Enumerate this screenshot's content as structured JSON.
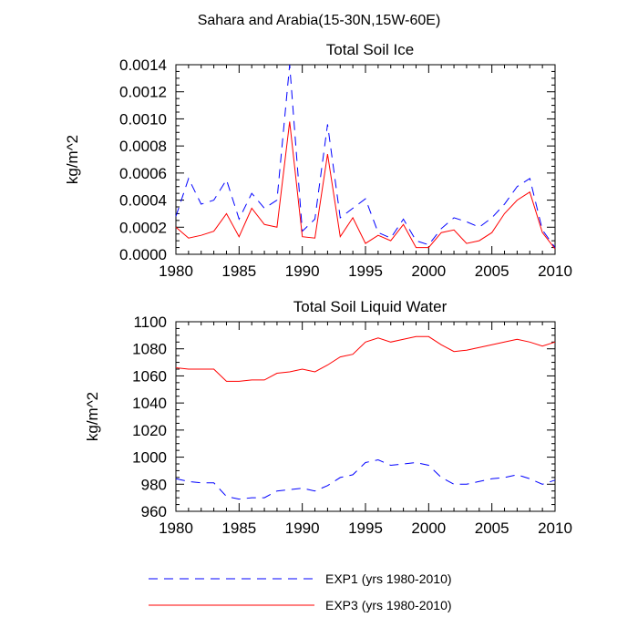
{
  "figure": {
    "title": "Sahara and Arabia(15-30N,15W-60E)"
  },
  "legend": {
    "placement": "bottom",
    "entries": [
      {
        "label": "EXP1 (yrs 1980-2010)",
        "color": "#0000ff",
        "dash": "dashed"
      },
      {
        "label": "EXP3 (yrs 1980-2010)",
        "color": "#ff0000",
        "dash": "solid"
      }
    ]
  },
  "chart_data": [
    {
      "type": "line",
      "title": "Total Soil Ice",
      "xlabel": "",
      "ylabel": "kg/m^2",
      "xlim": [
        1980,
        2010
      ],
      "ylim": [
        0,
        0.0014
      ],
      "xticks": [
        1980,
        1985,
        1990,
        1995,
        2000,
        2005,
        2010
      ],
      "yticks": [
        "0.0000",
        "0.0002",
        "0.0004",
        "0.0006",
        "0.0008",
        "0.0010",
        "0.0012",
        "0.0014"
      ],
      "grid": false,
      "x": [
        1980,
        1981,
        1982,
        1983,
        1984,
        1985,
        1986,
        1987,
        1988,
        1989,
        1990,
        1991,
        1992,
        1993,
        1994,
        1995,
        1996,
        1997,
        1998,
        1999,
        2000,
        2001,
        2002,
        2003,
        2004,
        2005,
        2006,
        2007,
        2008,
        2009,
        2010
      ],
      "series": [
        {
          "name": "EXP1 (yrs 1980-2010)",
          "color": "#0000ff",
          "dash": "dashed",
          "values": [
            0.00028,
            0.00056,
            0.00037,
            0.0004,
            0.00055,
            0.00026,
            0.00045,
            0.00034,
            0.0004,
            0.0014,
            0.00017,
            0.00026,
            0.00096,
            0.00027,
            0.00034,
            0.00041,
            0.00016,
            0.00012,
            0.00026,
            0.0001,
            7e-05,
            0.00019,
            0.00027,
            0.00024,
            0.0002,
            0.00027,
            0.00037,
            0.0005,
            0.00056,
            0.00018,
            5e-05
          ]
        },
        {
          "name": "EXP3 (yrs 1980-2010)",
          "color": "#ff0000",
          "dash": "solid",
          "values": [
            0.0002,
            0.00012,
            0.00014,
            0.00017,
            0.0003,
            0.00013,
            0.00034,
            0.00022,
            0.0002,
            0.00098,
            0.00013,
            0.00012,
            0.00074,
            0.00013,
            0.00027,
            8e-05,
            0.00014,
            0.0001,
            0.00022,
            5e-05,
            5e-05,
            0.00016,
            0.00018,
            8e-05,
            0.0001,
            0.00016,
            0.0003,
            0.0004,
            0.00046,
            0.00016,
            4e-05
          ]
        }
      ]
    },
    {
      "type": "line",
      "title": "Total Soil Liquid Water",
      "xlabel": "",
      "ylabel": "kg/m^2",
      "xlim": [
        1980,
        2010
      ],
      "ylim": [
        960,
        1100
      ],
      "xticks": [
        1980,
        1985,
        1990,
        1995,
        2000,
        2005,
        2010
      ],
      "yticks": [
        "960",
        "980",
        "1000",
        "1020",
        "1040",
        "1060",
        "1080",
        "1100"
      ],
      "grid": false,
      "x": [
        1980,
        1981,
        1982,
        1983,
        1984,
        1985,
        1986,
        1987,
        1988,
        1989,
        1990,
        1991,
        1992,
        1993,
        1994,
        1995,
        1996,
        1997,
        1998,
        1999,
        2000,
        2001,
        2002,
        2003,
        2004,
        2005,
        2006,
        2007,
        2008,
        2009,
        2010
      ],
      "series": [
        {
          "name": "EXP1 (yrs 1980-2010)",
          "color": "#0000ff",
          "dash": "dashed",
          "values": [
            984,
            982,
            981,
            981,
            971,
            969,
            970,
            970,
            975,
            976,
            977,
            975,
            979,
            985,
            987,
            996,
            998,
            994,
            995,
            996,
            994,
            985,
            980,
            980,
            982,
            984,
            985,
            987,
            984,
            980,
            983
          ]
        },
        {
          "name": "EXP3 (yrs 1980-2010)",
          "color": "#ff0000",
          "dash": "solid",
          "values": [
            1066,
            1065,
            1065,
            1065,
            1056,
            1056,
            1057,
            1057,
            1062,
            1063,
            1065,
            1063,
            1068,
            1074,
            1076,
            1085,
            1088,
            1085,
            1087,
            1089,
            1089,
            1083,
            1078,
            1079,
            1081,
            1083,
            1085,
            1087,
            1085,
            1082,
            1085
          ]
        }
      ]
    }
  ]
}
